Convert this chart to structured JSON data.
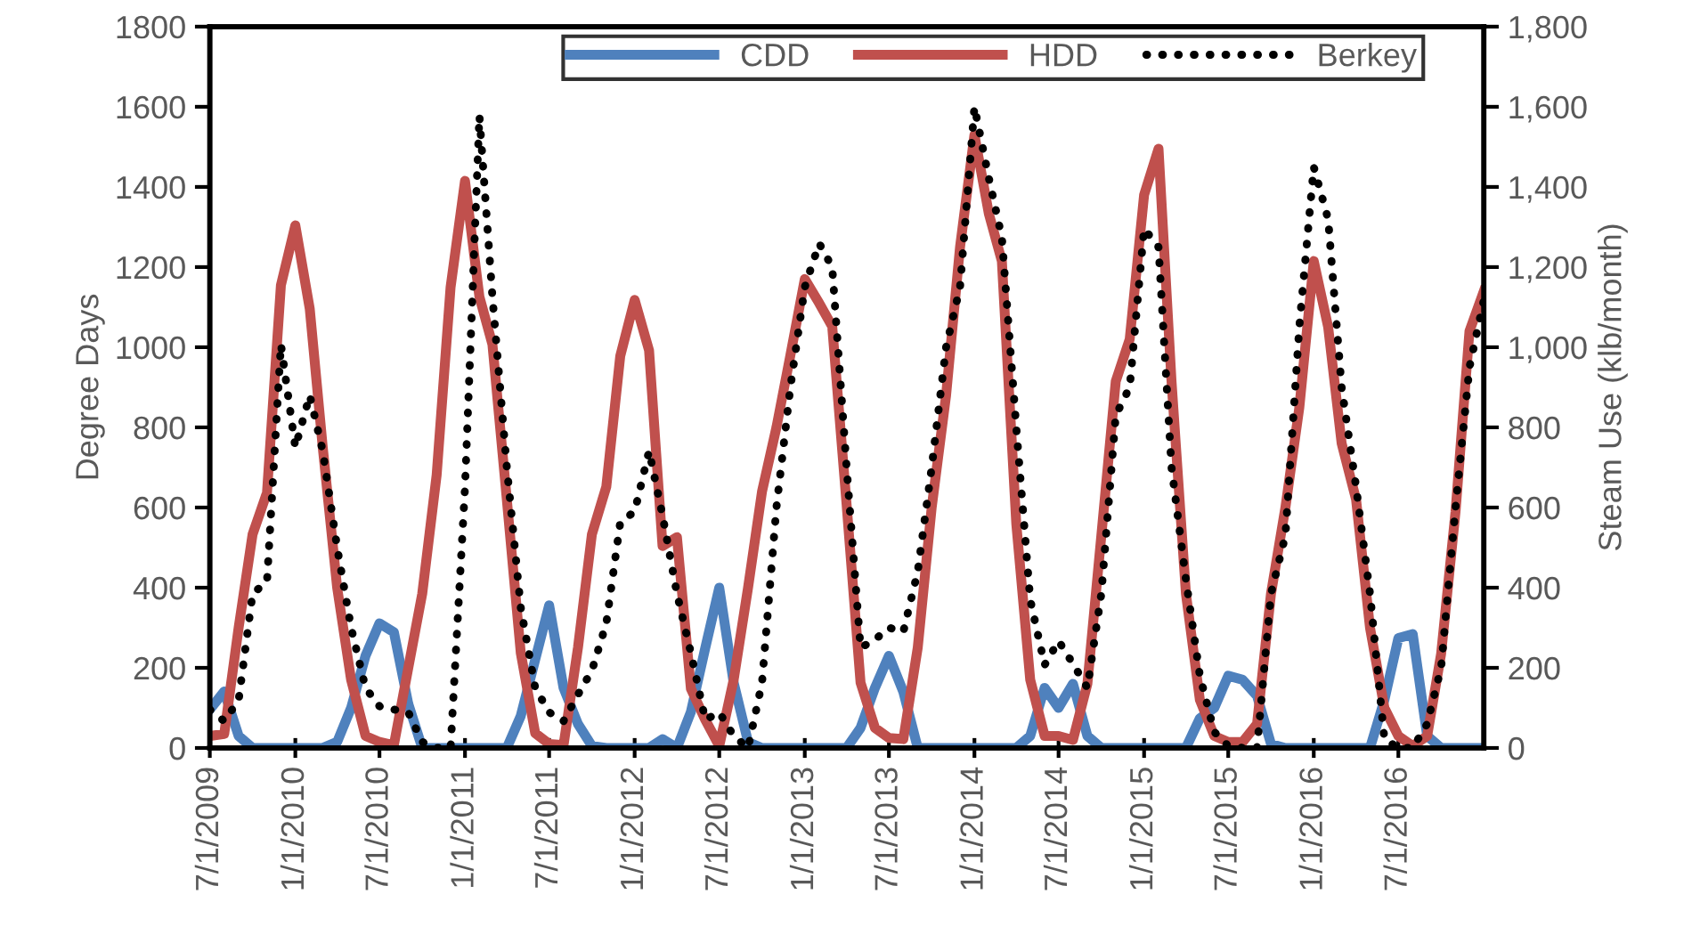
{
  "chart_data": {
    "type": "line",
    "ylabel": "Degree Days",
    "y2label": "Steam Use (klb/month)",
    "x": [
      "2009-07",
      "2009-08",
      "2009-09",
      "2009-10",
      "2009-11",
      "2009-12",
      "2010-01",
      "2010-02",
      "2010-03",
      "2010-04",
      "2010-05",
      "2010-06",
      "2010-07",
      "2010-08",
      "2010-09",
      "2010-10",
      "2010-11",
      "2010-12",
      "2011-01",
      "2011-02",
      "2011-03",
      "2011-04",
      "2011-05",
      "2011-06",
      "2011-07",
      "2011-08",
      "2011-09",
      "2011-10",
      "2011-11",
      "2011-12",
      "2012-01",
      "2012-02",
      "2012-03",
      "2012-04",
      "2012-05",
      "2012-06",
      "2012-07",
      "2012-08",
      "2012-09",
      "2012-10",
      "2012-11",
      "2012-12",
      "2013-01",
      "2013-02",
      "2013-03",
      "2013-04",
      "2013-05",
      "2013-06",
      "2013-07",
      "2013-08",
      "2013-09",
      "2013-10",
      "2013-11",
      "2013-12",
      "2014-01",
      "2014-02",
      "2014-03",
      "2014-04",
      "2014-05",
      "2014-06",
      "2014-07",
      "2014-08",
      "2014-09",
      "2014-10",
      "2014-11",
      "2014-12",
      "2015-01",
      "2015-02",
      "2015-03",
      "2015-04",
      "2015-05",
      "2015-06",
      "2015-07",
      "2015-08",
      "2015-09",
      "2015-10",
      "2015-11",
      "2015-12",
      "2016-01",
      "2016-02",
      "2016-03",
      "2016-04",
      "2016-05",
      "2016-06",
      "2016-07",
      "2016-08",
      "2016-09",
      "2016-10",
      "2016-11",
      "2016-12",
      "2017-01"
    ],
    "series": [
      {
        "name": "CDD",
        "color": "#4f81bd",
        "values": [
          96,
          141,
          30,
          0,
          0,
          0,
          0,
          0,
          0,
          15,
          100,
          230,
          311,
          289,
          110,
          0,
          0,
          0,
          0,
          0,
          0,
          0,
          80,
          220,
          356,
          150,
          60,
          5,
          0,
          0,
          0,
          0,
          22,
          0,
          90,
          250,
          400,
          163,
          15,
          0,
          0,
          0,
          0,
          0,
          0,
          0,
          50,
          150,
          230,
          140,
          0,
          0,
          0,
          0,
          0,
          0,
          0,
          0,
          30,
          150,
          100,
          160,
          30,
          0,
          0,
          0,
          0,
          0,
          0,
          0,
          74,
          100,
          180,
          170,
          130,
          10,
          0,
          0,
          0,
          0,
          0,
          0,
          0,
          120,
          274,
          284,
          30,
          0,
          0,
          0,
          0
        ]
      },
      {
        "name": "HDD",
        "color": "#c0504d",
        "values": [
          30,
          35,
          300,
          533,
          637,
          1155,
          1304,
          1096,
          750,
          400,
          170,
          30,
          15,
          7,
          200,
          385,
          681,
          1150,
          1415,
          1126,
          1007,
          620,
          237,
          37,
          10,
          7,
          250,
          533,
          652,
          978,
          1118,
          992,
          504,
          526,
          148,
          70,
          5,
          170,
          400,
          640,
          800,
          980,
          1170,
          1110,
          1052,
          607,
          163,
          50,
          25,
          22,
          250,
          600,
          880,
          1250,
          1530,
          1333,
          1215,
          560,
          170,
          30,
          30,
          20,
          160,
          530,
          915,
          1020,
          1380,
          1495,
          915,
          385,
          120,
          30,
          15,
          15,
          60,
          385,
          600,
          850,
          1215,
          1050,
          760,
          620,
          300,
          100,
          30,
          5,
          30,
          235,
          590,
          1040,
          1140
        ]
      },
      {
        "name": "Berkey",
        "color": "#000000",
        "axis": "y2",
        "line_style": "dotted",
        "values": [
          96,
          67,
          119,
          385,
          415,
          1007,
          750,
          880,
          741,
          500,
          300,
          150,
          104,
          96,
          89,
          15,
          0,
          0,
          650,
          1578,
          1126,
          700,
          350,
          150,
          89,
          67,
          133,
          193,
          311,
          563,
          590,
          741,
          580,
          385,
          237,
          70,
          89,
          30,
          0,
          163,
          600,
          900,
          1150,
          1259,
          1200,
          700,
          250,
          270,
          300,
          290,
          440,
          700,
          1000,
          1150,
          1600,
          1422,
          1274,
          800,
          370,
          207,
          267,
          210,
          150,
          385,
          830,
          900,
          1296,
          1250,
          700,
          420,
          180,
          40,
          5,
          0,
          0,
          385,
          530,
          1052,
          1450,
          1319,
          900,
          652,
          385,
          22,
          0,
          0,
          60,
          200,
          600,
          950,
          1118
        ]
      }
    ],
    "xlim": [
      "2009-07-01",
      "2017-01-01"
    ],
    "xticks": [
      {
        "value": "2009-07-01",
        "label": "7/1/2009"
      },
      {
        "value": "2010-01-01",
        "label": "1/1/2010"
      },
      {
        "value": "2010-07-01",
        "label": "7/1/2010"
      },
      {
        "value": "2011-01-01",
        "label": "1/1/2011"
      },
      {
        "value": "2011-07-01",
        "label": "7/1/2011"
      },
      {
        "value": "2012-01-01",
        "label": "1/1/2012"
      },
      {
        "value": "2012-07-01",
        "label": "7/1/2012"
      },
      {
        "value": "2013-01-01",
        "label": "1/1/2013"
      },
      {
        "value": "2013-07-01",
        "label": "7/1/2013"
      },
      {
        "value": "2014-01-01",
        "label": "1/1/2014"
      },
      {
        "value": "2014-07-01",
        "label": "7/1/2014"
      },
      {
        "value": "2015-01-01",
        "label": "1/1/2015"
      },
      {
        "value": "2015-07-01",
        "label": "7/1/2015"
      },
      {
        "value": "2016-01-01",
        "label": "1/1/2016"
      },
      {
        "value": "2016-07-01",
        "label": "7/1/2016"
      }
    ],
    "ylim": [
      0,
      1800
    ],
    "yticks": [
      0,
      200,
      400,
      600,
      800,
      1000,
      1200,
      1400,
      1600,
      1800
    ],
    "y2lim": [
      0,
      1800
    ],
    "y2ticks": [
      0,
      {
        "value": 200,
        "label": "200"
      },
      {
        "value": 400,
        "label": "400"
      },
      {
        "value": 600,
        "label": "600"
      },
      {
        "value": 800,
        "label": "800"
      },
      {
        "value": 1000,
        "label": "1,000"
      },
      {
        "value": 1200,
        "label": "1,200"
      },
      {
        "value": 1400,
        "label": "1,400"
      },
      {
        "value": 1600,
        "label": "1,600"
      },
      {
        "value": 1800,
        "label": "1,800"
      }
    ],
    "grid": false,
    "legend": "top right",
    "marker": "none"
  }
}
